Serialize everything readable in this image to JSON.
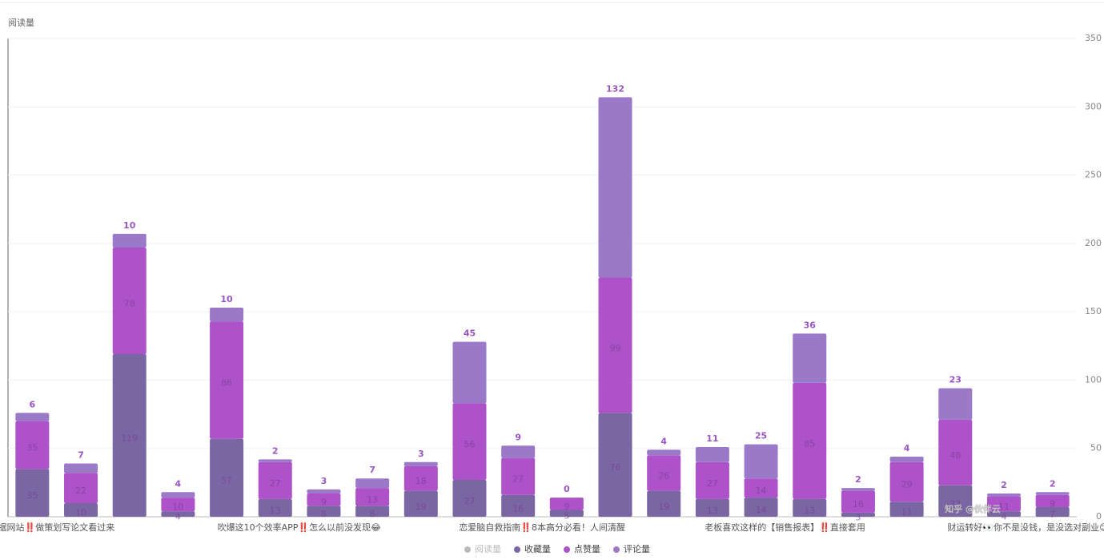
{
  "chart_data": {
    "type": "bar",
    "stacked": true,
    "y_axis_label": "阅读量",
    "watermark": "知乎 @伙伴云",
    "categories": [
      "据网站‼️做策划写论文看过来",
      null,
      null,
      null,
      null,
      "吹爆这10个效率APP‼️怎么以前没发现😂",
      null,
      null,
      null,
      null,
      "恋爱脑自救指南‼️8本高分必看！人间清醒",
      null,
      null,
      null,
      null,
      "老板喜欢这样的【销售报表】‼️直接套用",
      null,
      null,
      null,
      null,
      "财运转好👀你不是没钱，是没选对副业😊",
      null
    ],
    "series": [
      {
        "name": "阅读量",
        "color": "#bbbbbb",
        "hidden": true,
        "values": [
          null,
          null,
          null,
          null,
          null,
          null,
          null,
          null,
          null,
          null,
          null,
          null,
          null,
          null,
          null,
          null,
          null,
          null,
          null,
          null,
          null,
          null
        ]
      },
      {
        "name": "收藏量",
        "color": "#7b66a4",
        "values": [
          35,
          10,
          119,
          4,
          57,
          13,
          8,
          8,
          19,
          27,
          16,
          5,
          76,
          19,
          13,
          14,
          13,
          3,
          11,
          23,
          4,
          7
        ]
      },
      {
        "name": "点赞量",
        "color": "#ad52c9",
        "values": [
          35,
          22,
          78,
          10,
          86,
          27,
          9,
          13,
          18,
          56,
          27,
          9,
          99,
          26,
          27,
          14,
          85,
          16,
          29,
          48,
          11,
          9
        ]
      },
      {
        "name": "评论量",
        "color": "#9b79c9",
        "values": [
          6,
          7,
          10,
          4,
          10,
          2,
          3,
          7,
          3,
          45,
          9,
          0,
          132,
          4,
          11,
          25,
          36,
          2,
          4,
          23,
          2,
          2
        ]
      }
    ],
    "ylim": [
      0,
      350
    ],
    "yticks": [
      0,
      50,
      100,
      150,
      200,
      250,
      300,
      350
    ],
    "grid": true
  }
}
